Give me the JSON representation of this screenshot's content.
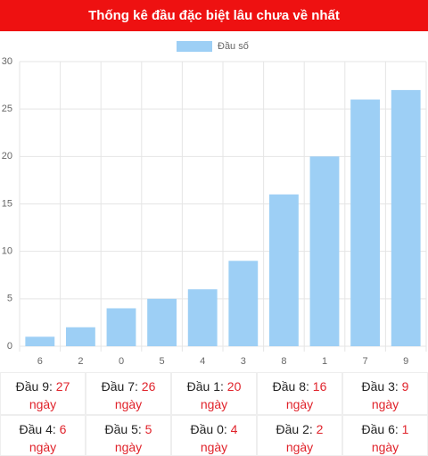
{
  "header": {
    "title": "Thống kê đầu đặc biệt lâu chưa về nhất"
  },
  "chart_data": {
    "type": "bar",
    "categories": [
      "6",
      "2",
      "0",
      "5",
      "4",
      "3",
      "8",
      "1",
      "7",
      "9"
    ],
    "series": [
      {
        "name": "Đầu số",
        "color": "#9dcff5",
        "values": [
          1,
          2,
          4,
          5,
          6,
          9,
          16,
          20,
          26,
          27
        ]
      }
    ],
    "ylim": [
      0,
      30
    ],
    "yticks": [
      0,
      5,
      10,
      15,
      20,
      25,
      30
    ],
    "grid": true,
    "legend": "top"
  },
  "table": {
    "rows": [
      [
        {
          "label": "Đầu 9:",
          "value": 27,
          "unit": "ngày"
        },
        {
          "label": "Đầu 7:",
          "value": 26,
          "unit": "ngày"
        },
        {
          "label": "Đầu 1:",
          "value": 20,
          "unit": "ngày"
        },
        {
          "label": "Đầu 8:",
          "value": 16,
          "unit": "ngày"
        },
        {
          "label": "Đầu 3:",
          "value": 9,
          "unit": "ngày"
        }
      ],
      [
        {
          "label": "Đầu 4:",
          "value": 6,
          "unit": "ngày"
        },
        {
          "label": "Đầu 5:",
          "value": 5,
          "unit": "ngày"
        },
        {
          "label": "Đầu 0:",
          "value": 4,
          "unit": "ngày"
        },
        {
          "label": "Đầu 2:",
          "value": 2,
          "unit": "ngày"
        },
        {
          "label": "Đầu 6:",
          "value": 1,
          "unit": "ngày"
        }
      ]
    ]
  }
}
